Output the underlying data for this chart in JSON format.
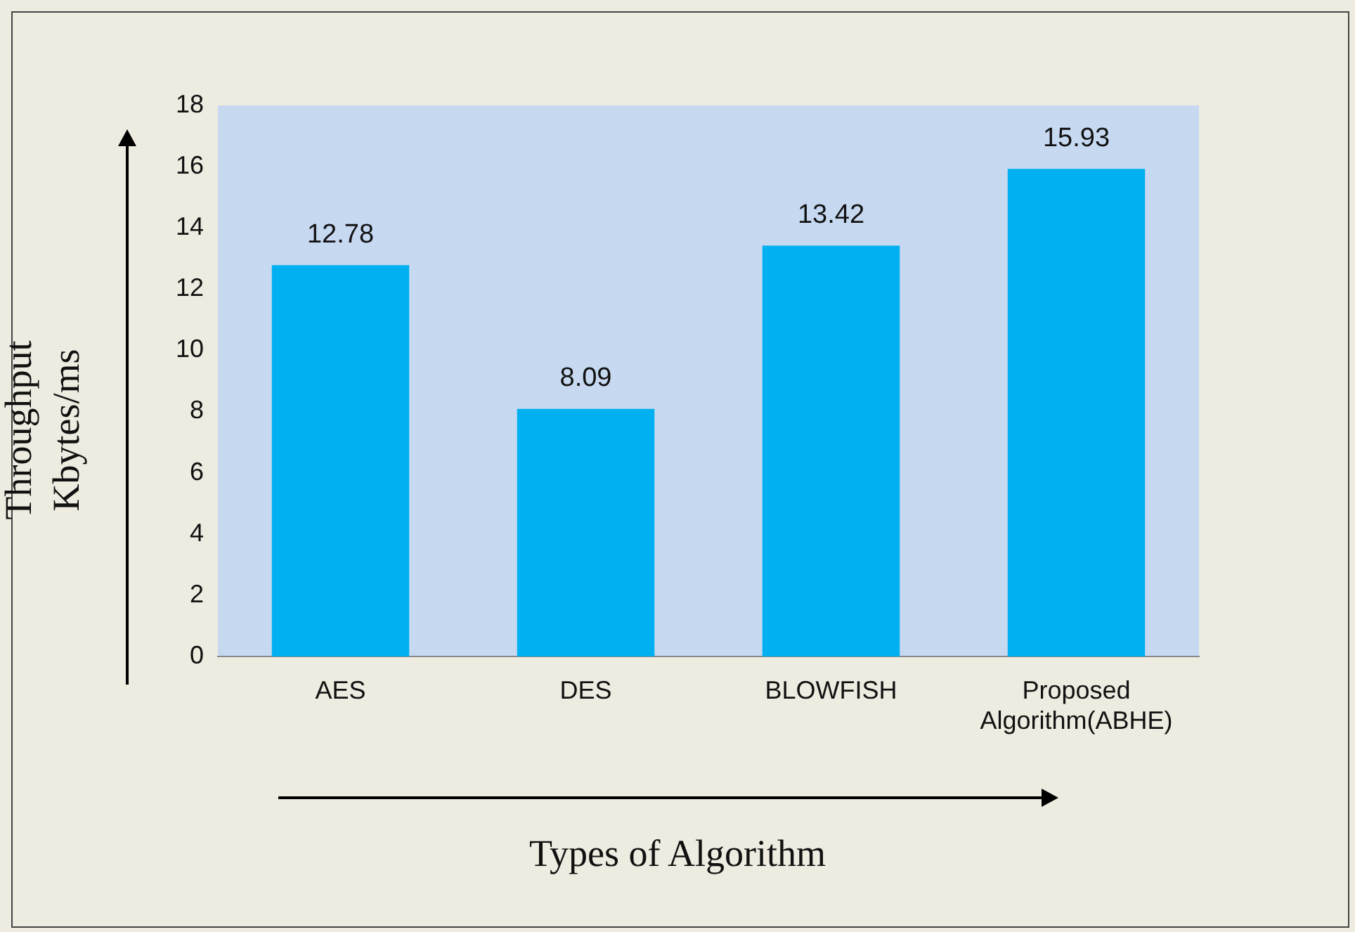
{
  "chart_data": {
    "type": "bar",
    "xlabel": "Types of Algorithm",
    "ylabel": "Throughput Kbytes/ms",
    "categories": [
      "AES",
      "DES",
      "BLOWFISH",
      "Proposed Algorithm(ABHE)"
    ],
    "values": [
      12.78,
      8.09,
      13.42,
      15.93
    ],
    "color": "#00b0f0",
    "ylim": [
      0,
      18
    ],
    "yticks": [
      0,
      2,
      4,
      6,
      8,
      10,
      12,
      14,
      16,
      18
    ],
    "grid": false,
    "legend": false,
    "data_labels": true
  }
}
